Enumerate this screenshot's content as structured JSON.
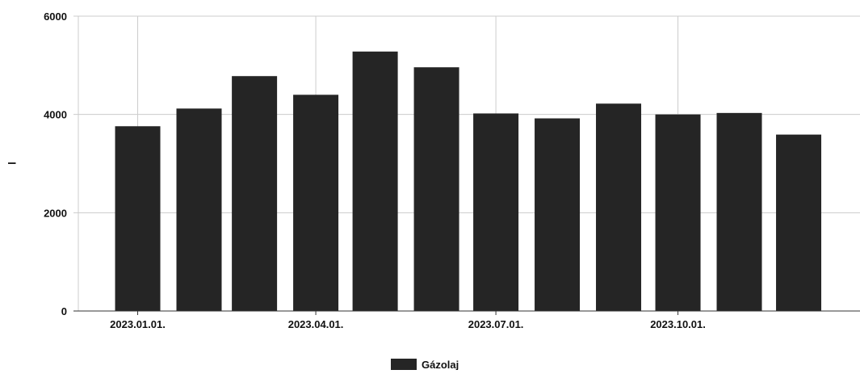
{
  "chart_data": {
    "type": "bar",
    "x": [
      "2023-01-01",
      "2023-02-01",
      "2023-03-01",
      "2023-04-01",
      "2023-05-01",
      "2023-06-01",
      "2023-07-01",
      "2023-08-01",
      "2023-09-01",
      "2023-10-01",
      "2023-11-01",
      "2023-12-01"
    ],
    "values": [
      3760,
      4120,
      4780,
      4400,
      5280,
      4960,
      4020,
      3920,
      4220,
      4000,
      4030,
      3590
    ],
    "series": [
      {
        "name": "Gázolaj",
        "color": "#252525"
      }
    ],
    "x_tick_labels": [
      {
        "date": "2023-01-01",
        "label": "2023.01.01."
      },
      {
        "date": "2023-04-01",
        "label": "2023.04.01."
      },
      {
        "date": "2023-07-01",
        "label": "2023.07.01."
      },
      {
        "date": "2023-10-01",
        "label": "2023.10.01."
      }
    ],
    "y_ticks": [
      0,
      2000,
      4000,
      6000
    ],
    "ylim": [
      0,
      6000
    ],
    "xlim": [
      "2022-12-02",
      "2024-01-01"
    ],
    "ylabel": "l",
    "xlabel": "",
    "title": "",
    "grid": true,
    "legend_position": "bottom-center"
  }
}
